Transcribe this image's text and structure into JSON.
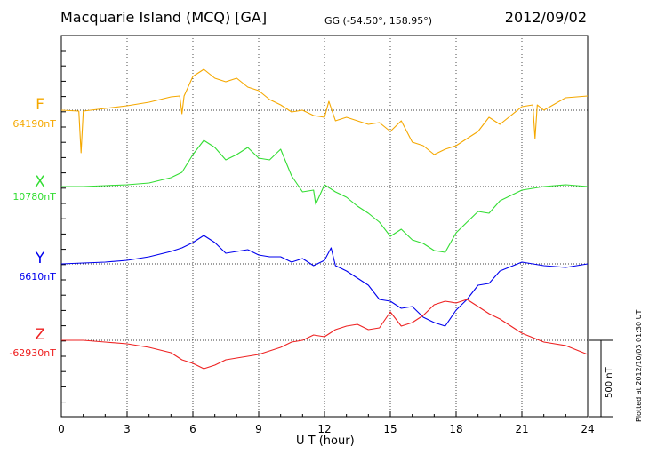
{
  "header": {
    "title": "Macquarie Island (MCQ)  [GA]",
    "coords": "GG (-54.50°, 158.95°)",
    "date": "2012/09/02"
  },
  "footer": {
    "plotted": "Plotted at 2012/10/03 01:30 UT"
  },
  "chart_data": {
    "type": "line",
    "xlabel": "U T (hour)",
    "xlim": [
      0,
      24
    ],
    "xticks": [
      0,
      3,
      6,
      9,
      12,
      15,
      18,
      21,
      24
    ],
    "tick_labels": [
      "0",
      "3",
      "6",
      "9",
      "12",
      "15",
      "18",
      "21",
      "24"
    ],
    "grid": true,
    "scale_bar_label": "500 nT",
    "series": [
      {
        "name": "F",
        "baseline_label": "64190nT",
        "color": "#f5a800",
        "x": [
          0,
          0.8,
          0.9,
          1,
          2,
          3,
          4,
          5,
          5.4,
          5.5,
          5.6,
          6,
          6.5,
          7,
          7.5,
          8,
          8.5,
          9,
          9.5,
          10,
          10.5,
          11,
          11.5,
          12,
          12.2,
          12.5,
          13,
          13.5,
          14,
          14.5,
          15,
          15.5,
          16,
          16.5,
          17,
          17.5,
          18,
          18.5,
          19,
          19.5,
          20,
          21,
          21.5,
          21.6,
          21.7,
          22,
          23,
          24
        ],
        "y": [
          0,
          -5,
          -240,
          -5,
          10,
          25,
          45,
          75,
          80,
          -20,
          80,
          190,
          230,
          180,
          160,
          180,
          130,
          110,
          60,
          30,
          -10,
          0,
          -30,
          -40,
          50,
          -60,
          -40,
          -60,
          -80,
          -70,
          -120,
          -60,
          -180,
          -200,
          -250,
          -220,
          -200,
          -160,
          -120,
          -40,
          -80,
          20,
          30,
          -160,
          30,
          0,
          70,
          80
        ]
      },
      {
        "name": "X",
        "baseline_label": "10780nT",
        "color": "#33dd33",
        "x": [
          0,
          1,
          2,
          3,
          4,
          5,
          5.5,
          6,
          6.5,
          7,
          7.5,
          8,
          8.5,
          9,
          9.5,
          10,
          10.5,
          11,
          11.5,
          11.6,
          12,
          12.5,
          13,
          13.5,
          14,
          14.5,
          15,
          15.5,
          16,
          16.5,
          17,
          17.5,
          18,
          18.5,
          19,
          19.5,
          20,
          21,
          22,
          23,
          24
        ],
        "y": [
          0,
          0,
          5,
          10,
          20,
          50,
          80,
          180,
          260,
          220,
          150,
          180,
          220,
          160,
          150,
          210,
          60,
          -30,
          -20,
          -100,
          10,
          -30,
          -60,
          -110,
          -150,
          -200,
          -280,
          -240,
          -300,
          -320,
          -360,
          -370,
          -260,
          -200,
          -140,
          -150,
          -80,
          -20,
          0,
          10,
          0
        ]
      },
      {
        "name": "Y",
        "baseline_label": "6610nT",
        "color": "#0000ee",
        "x": [
          0,
          1,
          2,
          3,
          4,
          5,
          5.5,
          6,
          6.5,
          7,
          7.5,
          8,
          8.5,
          9,
          9.5,
          10,
          10.5,
          11,
          11.5,
          12,
          12.3,
          12.5,
          13,
          13.5,
          14,
          14.5,
          15,
          15.5,
          16,
          16.5,
          17,
          17.5,
          18,
          18.5,
          19,
          19.5,
          20,
          21,
          22,
          23,
          24
        ],
        "y": [
          0,
          5,
          10,
          20,
          40,
          70,
          90,
          120,
          160,
          120,
          60,
          70,
          80,
          50,
          40,
          40,
          10,
          30,
          -10,
          20,
          90,
          -10,
          -40,
          -80,
          -120,
          -200,
          -210,
          -250,
          -240,
          -300,
          -330,
          -350,
          -260,
          -200,
          -120,
          -110,
          -40,
          10,
          -10,
          -20,
          0
        ]
      },
      {
        "name": "Z",
        "baseline_label": "-62930nT",
        "color": "#ee2222",
        "x": [
          0,
          1,
          2,
          3,
          4,
          5,
          5.5,
          6,
          6.5,
          7,
          7.5,
          8,
          8.5,
          9,
          9.5,
          10,
          10.5,
          11,
          11.5,
          12,
          12.5,
          13,
          13.5,
          14,
          14.5,
          15,
          15.5,
          16,
          16.5,
          17,
          17.5,
          18,
          18.5,
          19,
          19.5,
          20,
          21,
          22,
          23,
          24
        ],
        "y": [
          0,
          0,
          -10,
          -20,
          -40,
          -70,
          -110,
          -130,
          -160,
          -140,
          -110,
          -100,
          -90,
          -80,
          -60,
          -40,
          -10,
          0,
          30,
          20,
          60,
          80,
          90,
          60,
          70,
          160,
          80,
          100,
          140,
          200,
          220,
          210,
          230,
          190,
          150,
          120,
          40,
          -10,
          -30,
          -80
        ]
      }
    ]
  }
}
